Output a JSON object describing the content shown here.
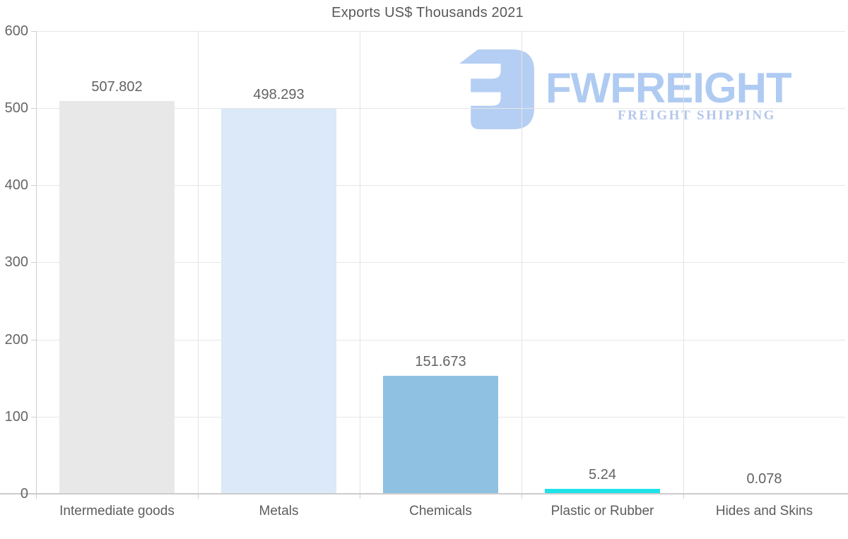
{
  "chart_data": {
    "type": "bar",
    "title": "Exports US$ Thousands 2021",
    "categories": [
      "Intermediate goods",
      "Metals",
      "Chemicals",
      "Plastic or Rubber",
      "Hides and Skins"
    ],
    "values": [
      507.802,
      498.293,
      151.673,
      5.24,
      0.078
    ],
    "value_labels": [
      "507.802",
      "498.293",
      "151.673",
      "5.24",
      "0.078"
    ],
    "bar_colors": [
      "#e8e8e8",
      "#dbe9f8",
      "#8fc1e2",
      "#1de3e8",
      "#b0b0b0"
    ],
    "xlabel": "",
    "ylabel": "",
    "ylim": [
      0,
      600
    ],
    "yticks": [
      "0",
      "100",
      "200",
      "300",
      "400",
      "500",
      "600"
    ],
    "grid": "horizontal lines at every 100; vertical lines at category boundaries",
    "legend": "none"
  },
  "watermark": {
    "brand": "FWFREIGHT",
    "tagline": "FREIGHT SHIPPING",
    "mark_icon": "stylized-reversed-E-freight-logo",
    "color": "#a9c6f1"
  },
  "colors": {
    "background": "#ffffff",
    "grid": "#e6e6e6",
    "axis": "#cccccc",
    "title_text": "#595959",
    "tick_text": "#666666",
    "value_text": "#636363",
    "category_text": "#5d5d5d",
    "watermark_text": "#a2c2f0",
    "watermark_tagline": "#a6bde8"
  }
}
